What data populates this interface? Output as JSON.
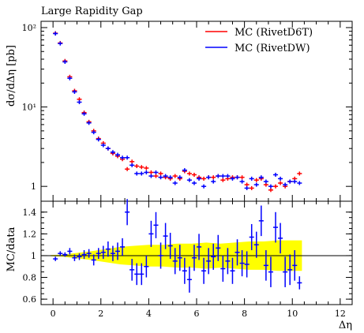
{
  "chart_data": [
    {
      "type": "scatter",
      "panel": "main",
      "title": "Large Rapidity Gap",
      "xlabel": "",
      "ylabel": "dσ/dΔη [pb]",
      "yscale": "log",
      "ylim": [
        0.65,
        120
      ],
      "xlim": [
        -0.5,
        12.5
      ],
      "y_ticks": [
        {
          "value": 1,
          "label": "1"
        },
        {
          "value": 10,
          "label": "10¹"
        },
        {
          "value": 100,
          "label": "10²"
        }
      ],
      "x_ticks": [
        0,
        2,
        4,
        6,
        8,
        10,
        12
      ],
      "legend_position": "top-right",
      "bin_width": 0.2,
      "series": [
        {
          "name": "MC (RivetD6T)",
          "color": "#ff0000",
          "x": [
            0.1,
            0.3,
            0.5,
            0.7,
            0.9,
            1.1,
            1.3,
            1.5,
            1.7,
            1.9,
            2.1,
            2.3,
            2.5,
            2.7,
            2.9,
            3.1,
            3.3,
            3.5,
            3.7,
            3.9,
            4.1,
            4.3,
            4.5,
            4.7,
            4.9,
            5.1,
            5.3,
            5.5,
            5.7,
            5.9,
            6.1,
            6.3,
            6.5,
            6.7,
            6.9,
            7.1,
            7.3,
            7.5,
            7.7,
            7.9,
            8.1,
            8.3,
            8.5,
            8.7,
            8.9,
            9.1,
            9.3,
            9.5,
            9.7,
            9.9,
            10.1,
            10.3
          ],
          "y": [
            85,
            64,
            38,
            24,
            16,
            12.5,
            8.5,
            6.5,
            5,
            4,
            3.5,
            3.0,
            2.6,
            2.4,
            2.2,
            1.65,
            2.05,
            1.8,
            1.75,
            1.7,
            1.5,
            1.35,
            1.45,
            1.3,
            1.25,
            1.35,
            1.25,
            1.55,
            1.45,
            1.4,
            1.3,
            1.25,
            1.3,
            1.3,
            1.35,
            1.2,
            1.25,
            1.3,
            1.3,
            1.3,
            1.05,
            0.95,
            1.2,
            1.25,
            1.05,
            0.9,
            1.0,
            1.1,
            1.0,
            1.15,
            1.25,
            1.45
          ]
        },
        {
          "name": "MC (RivetDW)",
          "color": "#0000ff",
          "x": [
            0.1,
            0.3,
            0.5,
            0.7,
            0.9,
            1.1,
            1.3,
            1.5,
            1.7,
            1.9,
            2.1,
            2.3,
            2.5,
            2.7,
            2.9,
            3.1,
            3.3,
            3.5,
            3.7,
            3.9,
            4.1,
            4.3,
            4.5,
            4.7,
            4.9,
            5.1,
            5.3,
            5.5,
            5.7,
            5.9,
            6.1,
            6.3,
            6.5,
            6.7,
            6.9,
            7.1,
            7.3,
            7.5,
            7.7,
            7.9,
            8.1,
            8.3,
            8.5,
            8.7,
            8.9,
            9.1,
            9.3,
            9.5,
            9.7,
            9.9,
            10.1,
            10.3
          ],
          "y": [
            84,
            63,
            37,
            23,
            15.5,
            11.5,
            8.2,
            6.3,
            4.8,
            3.9,
            3.3,
            3.0,
            2.7,
            2.5,
            2.3,
            2.3,
            1.85,
            1.45,
            1.45,
            1.5,
            1.35,
            1.5,
            1.3,
            1.35,
            1.3,
            1.1,
            1.3,
            1.6,
            1.2,
            1.1,
            1.25,
            1.0,
            1.3,
            1.15,
            1.35,
            1.35,
            1.35,
            1.25,
            1.3,
            1.15,
            0.95,
            1.25,
            1.05,
            1.3,
            1.15,
            1.0,
            1.4,
            1.25,
            1.05,
            1.15,
            1.15,
            1.1
          ]
        }
      ]
    },
    {
      "type": "scatter",
      "panel": "ratio",
      "title": "",
      "xlabel": "Δη",
      "ylabel": "MC/data",
      "ylim": [
        0.55,
        1.5
      ],
      "xlim": [
        -0.5,
        12.5
      ],
      "y_ticks": [
        {
          "value": 0.6,
          "label": "0.6"
        },
        {
          "value": 0.8,
          "label": "0.8"
        },
        {
          "value": 1.0,
          "label": "1"
        },
        {
          "value": 1.2,
          "label": "1.2"
        },
        {
          "value": 1.4,
          "label": "1.4"
        }
      ],
      "x_ticks": [
        {
          "value": 0,
          "label": "0"
        },
        {
          "value": 2,
          "label": "2"
        },
        {
          "value": 4,
          "label": "4"
        },
        {
          "value": 6,
          "label": "6"
        },
        {
          "value": 8,
          "label": "8"
        },
        {
          "value": 10,
          "label": "10"
        },
        {
          "value": 12,
          "label": "12"
        }
      ],
      "reference_line": 1.0,
      "band_color": "#ffff00",
      "band": {
        "x": [
          -0.1,
          0.4,
          1.0,
          1.6,
          2.2,
          2.8,
          3.4,
          4.0,
          4.6,
          5.2,
          5.8,
          6.4,
          7.0,
          7.6,
          8.2,
          8.8,
          9.4,
          10.0,
          10.4
        ],
        "lower": [
          0.995,
          0.99,
          0.975,
          0.96,
          0.94,
          0.92,
          0.91,
          0.9,
          0.9,
          0.89,
          0.89,
          0.88,
          0.89,
          0.88,
          0.87,
          0.87,
          0.86,
          0.86,
          0.86
        ],
        "upper": [
          1.005,
          1.01,
          1.025,
          1.04,
          1.06,
          1.08,
          1.09,
          1.1,
          1.1,
          1.11,
          1.11,
          1.12,
          1.11,
          1.12,
          1.13,
          1.13,
          1.14,
          1.14,
          1.14
        ]
      },
      "series": [
        {
          "name": "MC (RivetDW)",
          "color": "#0000ff",
          "x": [
            0.1,
            0.3,
            0.5,
            0.7,
            0.9,
            1.1,
            1.3,
            1.5,
            1.7,
            1.9,
            2.1,
            2.3,
            2.5,
            2.7,
            2.9,
            3.1,
            3.3,
            3.5,
            3.7,
            3.9,
            4.1,
            4.3,
            4.5,
            4.7,
            4.9,
            5.1,
            5.3,
            5.5,
            5.7,
            5.9,
            6.1,
            6.3,
            6.5,
            6.7,
            6.9,
            7.1,
            7.3,
            7.5,
            7.7,
            7.9,
            8.1,
            8.3,
            8.5,
            8.7,
            8.9,
            9.1,
            9.3,
            9.5,
            9.7,
            9.9,
            10.1,
            10.3
          ],
          "y": [
            0.97,
            1.02,
            1.01,
            1.04,
            0.98,
            0.99,
            1.01,
            1.02,
            0.96,
            1.02,
            1.03,
            1.06,
            1.02,
            1.04,
            1.08,
            1.4,
            0.87,
            0.83,
            0.83,
            0.9,
            1.2,
            1.28,
            1.0,
            1.18,
            1.09,
            0.95,
            0.98,
            0.86,
            0.78,
            0.98,
            1.08,
            0.86,
            0.95,
            0.99,
            1.07,
            0.88,
            0.95,
            0.86,
            1.03,
            0.93,
            0.92,
            1.17,
            1.1,
            1.32,
            0.91,
            0.85,
            1.26,
            1.16,
            0.85,
            0.87,
            0.91,
            0.75
          ],
          "yerr": [
            0.02,
            0.02,
            0.02,
            0.03,
            0.03,
            0.03,
            0.04,
            0.04,
            0.05,
            0.05,
            0.06,
            0.07,
            0.07,
            0.08,
            0.08,
            0.12,
            0.1,
            0.1,
            0.1,
            0.1,
            0.12,
            0.12,
            0.12,
            0.12,
            0.12,
            0.12,
            0.12,
            0.12,
            0.12,
            0.12,
            0.12,
            0.12,
            0.12,
            0.12,
            0.12,
            0.12,
            0.12,
            0.12,
            0.12,
            0.12,
            0.12,
            0.12,
            0.12,
            0.14,
            0.14,
            0.14,
            0.14,
            0.14,
            0.14,
            0.14,
            0.14,
            0.06
          ]
        }
      ]
    }
  ]
}
